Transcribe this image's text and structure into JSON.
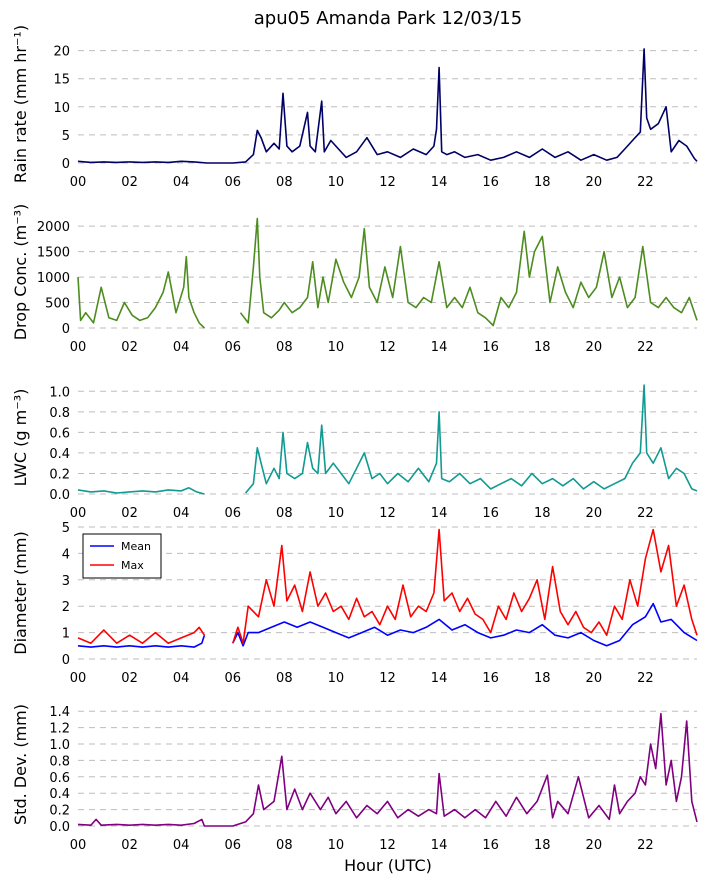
{
  "figure": {
    "title": "apu05 Amanda Park 12/03/15",
    "xlabel": "Hour (UTC)"
  },
  "chart_data": [
    {
      "type": "line",
      "id": "rain",
      "ylabel": "Rain rate (mm hr⁻¹)",
      "xlim": [
        0,
        24
      ],
      "ylim": [
        0,
        21
      ],
      "yticks": [
        0,
        5,
        10,
        15,
        20
      ],
      "ytick_labels": [
        "0",
        "5",
        "10",
        "15",
        "20"
      ],
      "xticks": [
        "00",
        "02",
        "04",
        "06",
        "08",
        "10",
        "12",
        "14",
        "16",
        "18",
        "20",
        "22"
      ],
      "grid": "y-dashed",
      "series": [
        {
          "color": "#000066",
          "x": [
            0,
            0.5,
            1,
            1.5,
            2,
            2.5,
            3,
            3.5,
            4,
            4.5,
            5,
            5.5,
            6,
            6.5,
            6.8,
            6.95,
            7.1,
            7.3,
            7.6,
            7.8,
            7.95,
            8.1,
            8.3,
            8.6,
            8.9,
            9.0,
            9.2,
            9.45,
            9.55,
            9.8,
            10.1,
            10.4,
            10.8,
            11.2,
            11.6,
            12.0,
            12.5,
            13.0,
            13.5,
            13.8,
            13.9,
            14.0,
            14.1,
            14.3,
            14.6,
            15.0,
            15.5,
            16.0,
            16.5,
            17.0,
            17.5,
            18.0,
            18.5,
            19.0,
            19.5,
            20.0,
            20.5,
            20.9,
            21.2,
            21.5,
            21.8,
            21.95,
            22.05,
            22.2,
            22.5,
            22.8,
            23.0,
            23.3,
            23.6,
            23.9,
            24.0
          ],
          "y": [
            0.3,
            0.1,
            0.2,
            0.1,
            0.2,
            0.1,
            0.2,
            0.1,
            0.3,
            0.2,
            0.0,
            0.0,
            0.0,
            0.2,
            1.5,
            5.8,
            4.5,
            2.0,
            3.5,
            2.5,
            12.4,
            3.0,
            2.0,
            3.0,
            9.0,
            3.0,
            2.0,
            11.0,
            2.0,
            4.0,
            2.5,
            1.0,
            2.0,
            4.5,
            1.5,
            2.0,
            1.0,
            2.5,
            1.5,
            3.0,
            6.0,
            17.0,
            2.0,
            1.5,
            2.0,
            1.0,
            1.5,
            0.5,
            1.0,
            2.0,
            1.0,
            2.5,
            1.0,
            2.0,
            0.5,
            1.5,
            0.5,
            1.0,
            2.5,
            4.0,
            5.5,
            20.3,
            8.0,
            6.0,
            7.0,
            10.0,
            2.0,
            4.0,
            3.0,
            0.8,
            0.3
          ]
        }
      ]
    },
    {
      "type": "line",
      "id": "conc",
      "ylabel": "Drop Conc. (m⁻³)",
      "xlim": [
        0,
        24
      ],
      "ylim": [
        0,
        2200
      ],
      "yticks": [
        0,
        500,
        1000,
        1500,
        2000
      ],
      "ytick_labels": [
        "0",
        "500",
        "1000",
        "1500",
        "2000"
      ],
      "xticks": [
        "00",
        "02",
        "04",
        "06",
        "08",
        "10",
        "12",
        "14",
        "16",
        "18",
        "20",
        "22"
      ],
      "grid": "y-dashed",
      "series": [
        {
          "color": "#4d8c1f",
          "x": [
            0,
            0.1,
            0.3,
            0.6,
            0.9,
            1.2,
            1.5,
            1.8,
            2.1,
            2.4,
            2.7,
            3.0,
            3.3,
            3.5,
            3.8,
            4.1,
            4.2,
            4.3,
            4.5,
            4.7,
            4.9,
            6.1,
            6.3,
            6.6,
            6.8,
            6.95,
            7.05,
            7.2,
            7.5,
            7.8,
            8.0,
            8.3,
            8.6,
            8.9,
            9.1,
            9.3,
            9.5,
            9.7,
            10.0,
            10.3,
            10.6,
            10.9,
            11.1,
            11.3,
            11.6,
            11.9,
            12.2,
            12.5,
            12.8,
            13.1,
            13.4,
            13.7,
            14.0,
            14.3,
            14.6,
            14.9,
            15.2,
            15.5,
            15.8,
            16.1,
            16.4,
            16.7,
            17.0,
            17.3,
            17.5,
            17.7,
            18.0,
            18.3,
            18.6,
            18.9,
            19.2,
            19.5,
            19.8,
            20.1,
            20.4,
            20.7,
            21.0,
            21.3,
            21.6,
            21.9,
            22.2,
            22.5,
            22.8,
            23.1,
            23.4,
            23.7,
            24.0
          ],
          "y": [
            1000,
            150,
            300,
            100,
            800,
            200,
            150,
            500,
            250,
            150,
            200,
            400,
            700,
            1100,
            300,
            800,
            1400,
            600,
            300,
            100,
            0,
            null,
            300,
            100,
            1200,
            2150,
            1000,
            300,
            200,
            350,
            500,
            300,
            400,
            600,
            1300,
            400,
            1000,
            500,
            1350,
            900,
            600,
            1000,
            1950,
            800,
            500,
            1200,
            600,
            1600,
            500,
            400,
            600,
            500,
            1300,
            400,
            600,
            400,
            800,
            300,
            200,
            50,
            600,
            400,
            700,
            1900,
            1000,
            1500,
            1800,
            500,
            1200,
            700,
            400,
            900,
            600,
            800,
            1500,
            600,
            1000,
            400,
            600,
            1600,
            500,
            400,
            600,
            400,
            300,
            600,
            150
          ]
        }
      ]
    },
    {
      "type": "line",
      "id": "lwc",
      "ylabel": "LWC (g m⁻³)",
      "xlim": [
        0,
        24
      ],
      "ylim": [
        0,
        1.1
      ],
      "yticks": [
        0.0,
        0.2,
        0.4,
        0.6,
        0.8,
        1.0
      ],
      "ytick_labels": [
        "0.0",
        "0.2",
        "0.4",
        "0.6",
        "0.8",
        "1.0"
      ],
      "xticks": [
        "00",
        "02",
        "04",
        "06",
        "08",
        "10",
        "12",
        "14",
        "16",
        "18",
        "20",
        "22"
      ],
      "grid": "y-dashed",
      "series": [
        {
          "color": "#119a91",
          "x": [
            0,
            0.5,
            1,
            1.5,
            2,
            2.5,
            3,
            3.5,
            4,
            4.3,
            4.6,
            4.9,
            6.1,
            6.5,
            6.8,
            6.95,
            7.1,
            7.3,
            7.6,
            7.8,
            7.95,
            8.1,
            8.4,
            8.7,
            8.9,
            9.1,
            9.3,
            9.45,
            9.6,
            9.9,
            10.2,
            10.5,
            10.8,
            11.1,
            11.4,
            11.7,
            12.0,
            12.4,
            12.8,
            13.2,
            13.6,
            13.9,
            14.0,
            14.1,
            14.4,
            14.8,
            15.2,
            15.6,
            16.0,
            16.4,
            16.8,
            17.2,
            17.6,
            18.0,
            18.4,
            18.8,
            19.2,
            19.6,
            20.0,
            20.4,
            20.8,
            21.2,
            21.5,
            21.8,
            21.95,
            22.05,
            22.3,
            22.6,
            22.9,
            23.2,
            23.5,
            23.8,
            24.0
          ],
          "y": [
            0.04,
            0.02,
            0.03,
            0.01,
            0.02,
            0.03,
            0.02,
            0.04,
            0.03,
            0.06,
            0.02,
            0.0,
            null,
            0.01,
            0.1,
            0.45,
            0.3,
            0.1,
            0.25,
            0.15,
            0.6,
            0.2,
            0.15,
            0.2,
            0.5,
            0.25,
            0.2,
            0.67,
            0.2,
            0.3,
            0.2,
            0.1,
            0.25,
            0.4,
            0.15,
            0.2,
            0.1,
            0.2,
            0.12,
            0.25,
            0.12,
            0.3,
            0.8,
            0.15,
            0.12,
            0.2,
            0.1,
            0.15,
            0.05,
            0.1,
            0.15,
            0.08,
            0.2,
            0.1,
            0.15,
            0.08,
            0.15,
            0.05,
            0.12,
            0.05,
            0.1,
            0.15,
            0.3,
            0.4,
            1.06,
            0.4,
            0.3,
            0.45,
            0.15,
            0.25,
            0.2,
            0.05,
            0.03
          ]
        }
      ]
    },
    {
      "type": "line",
      "id": "diam",
      "ylabel": "Diameter (mm)",
      "xlim": [
        0,
        24
      ],
      "ylim": [
        0,
        5
      ],
      "yticks": [
        0,
        1,
        2,
        3,
        4,
        5
      ],
      "ytick_labels": [
        "0",
        "1",
        "2",
        "3",
        "4",
        "5"
      ],
      "xticks": [
        "00",
        "02",
        "04",
        "06",
        "08",
        "10",
        "12",
        "14",
        "16",
        "18",
        "20",
        "22"
      ],
      "grid": "y-dashed",
      "legend": {
        "position": "upper-left",
        "entries": [
          "Mean",
          "Max"
        ]
      },
      "series": [
        {
          "name": "Mean",
          "color": "#0000ff",
          "x": [
            0,
            0.5,
            1,
            1.5,
            2,
            2.5,
            3,
            3.5,
            4,
            4.5,
            4.8,
            4.9,
            5.0,
            6.0,
            6.2,
            6.4,
            6.6,
            7.0,
            7.5,
            8.0,
            8.5,
            9.0,
            9.5,
            10.0,
            10.5,
            11.0,
            11.5,
            12.0,
            12.5,
            13.0,
            13.5,
            14.0,
            14.5,
            15.0,
            15.5,
            16.0,
            16.5,
            17.0,
            17.5,
            18.0,
            18.5,
            19.0,
            19.5,
            20.0,
            20.5,
            21.0,
            21.5,
            22.0,
            22.3,
            22.6,
            23.0,
            23.5,
            24.0
          ],
          "y": [
            0.5,
            0.45,
            0.5,
            0.45,
            0.5,
            0.45,
            0.5,
            0.45,
            0.5,
            0.45,
            0.6,
            0.9,
            null,
            0.6,
            1.0,
            0.5,
            1.0,
            1.0,
            1.2,
            1.4,
            1.2,
            1.4,
            1.2,
            1.0,
            0.8,
            1.0,
            1.2,
            0.9,
            1.1,
            1.0,
            1.2,
            1.5,
            1.1,
            1.3,
            1.0,
            0.8,
            0.9,
            1.1,
            1.0,
            1.3,
            0.9,
            0.8,
            1.0,
            0.7,
            0.5,
            0.7,
            1.3,
            1.6,
            2.1,
            1.4,
            1.5,
            1.0,
            0.7
          ]
        },
        {
          "name": "Max",
          "color": "#ff0000",
          "x": [
            0,
            0.5,
            1,
            1.5,
            2,
            2.5,
            3,
            3.5,
            4,
            4.5,
            4.7,
            4.9,
            5.0,
            6.0,
            6.2,
            6.4,
            6.6,
            7.0,
            7.3,
            7.6,
            7.9,
            8.1,
            8.4,
            8.7,
            9.0,
            9.3,
            9.6,
            9.9,
            10.2,
            10.5,
            10.8,
            11.1,
            11.4,
            11.7,
            12.0,
            12.3,
            12.6,
            12.9,
            13.2,
            13.5,
            13.8,
            14.0,
            14.2,
            14.5,
            14.8,
            15.1,
            15.4,
            15.7,
            16.0,
            16.3,
            16.6,
            16.9,
            17.2,
            17.5,
            17.8,
            18.1,
            18.4,
            18.7,
            19.0,
            19.3,
            19.6,
            19.9,
            20.2,
            20.5,
            20.8,
            21.1,
            21.4,
            21.7,
            22.0,
            22.3,
            22.6,
            22.9,
            23.2,
            23.5,
            23.8,
            24.0
          ],
          "y": [
            0.8,
            0.6,
            1.1,
            0.6,
            0.9,
            0.6,
            1.0,
            0.6,
            0.8,
            1.0,
            1.2,
            0.9,
            null,
            0.6,
            1.2,
            0.6,
            2.0,
            1.6,
            3.0,
            2.0,
            4.3,
            2.2,
            2.8,
            1.8,
            3.3,
            2.0,
            2.5,
            1.8,
            2.0,
            1.5,
            2.3,
            1.6,
            1.8,
            1.3,
            2.0,
            1.5,
            2.8,
            1.6,
            2.0,
            1.8,
            2.5,
            4.9,
            2.2,
            2.5,
            1.8,
            2.3,
            1.7,
            1.5,
            1.0,
            2.0,
            1.5,
            2.5,
            1.8,
            2.3,
            3.0,
            1.5,
            3.5,
            1.8,
            1.3,
            1.8,
            1.2,
            1.0,
            1.4,
            0.9,
            2.0,
            1.5,
            3.0,
            2.0,
            3.8,
            4.9,
            3.3,
            4.3,
            2.0,
            2.8,
            1.5,
            0.9
          ]
        }
      ]
    },
    {
      "type": "line",
      "id": "std",
      "ylabel": "Std. Dev. (mm)",
      "xlim": [
        0,
        24
      ],
      "ylim": [
        0,
        1.5
      ],
      "yticks": [
        0.0,
        0.2,
        0.4,
        0.6,
        0.8,
        1.0,
        1.2,
        1.4
      ],
      "ytick_labels": [
        "0.0",
        "0.2",
        "0.4",
        "0.6",
        "0.8",
        "1.0",
        "1.2",
        "1.4"
      ],
      "xticks": [
        "00",
        "02",
        "04",
        "06",
        "08",
        "10",
        "12",
        "14",
        "16",
        "18",
        "20",
        "22"
      ],
      "grid": "y-dashed",
      "series": [
        {
          "color": "#800080",
          "x": [
            0,
            0.5,
            0.7,
            0.9,
            1.5,
            2,
            2.5,
            3,
            3.5,
            4,
            4.5,
            4.8,
            4.9,
            6.0,
            6.3,
            6.5,
            6.8,
            7.0,
            7.2,
            7.6,
            7.9,
            8.1,
            8.4,
            8.7,
            9.0,
            9.4,
            9.7,
            10.0,
            10.4,
            10.8,
            11.2,
            11.6,
            12.0,
            12.4,
            12.8,
            13.2,
            13.6,
            13.9,
            14.0,
            14.2,
            14.6,
            15.0,
            15.4,
            15.8,
            16.2,
            16.6,
            17.0,
            17.4,
            17.8,
            18.2,
            18.4,
            18.6,
            19.0,
            19.4,
            19.8,
            20.2,
            20.6,
            20.8,
            21.0,
            21.3,
            21.6,
            21.8,
            22.0,
            22.2,
            22.4,
            22.6,
            22.8,
            23.0,
            23.2,
            23.4,
            23.6,
            23.8,
            24.0
          ],
          "y": [
            0.02,
            0.01,
            0.08,
            0.01,
            0.02,
            0.01,
            0.02,
            0.01,
            0.02,
            0.01,
            0.03,
            0.08,
            0.0,
            0.0,
            0.03,
            0.05,
            0.15,
            0.5,
            0.2,
            0.3,
            0.85,
            0.2,
            0.45,
            0.2,
            0.4,
            0.2,
            0.35,
            0.15,
            0.3,
            0.1,
            0.25,
            0.15,
            0.3,
            0.1,
            0.2,
            0.12,
            0.2,
            0.15,
            0.64,
            0.12,
            0.2,
            0.1,
            0.2,
            0.1,
            0.3,
            0.12,
            0.35,
            0.15,
            0.3,
            0.62,
            0.1,
            0.3,
            0.15,
            0.6,
            0.1,
            0.25,
            0.08,
            0.5,
            0.15,
            0.3,
            0.4,
            0.6,
            0.5,
            1.0,
            0.7,
            1.37,
            0.5,
            0.8,
            0.3,
            0.6,
            1.28,
            0.3,
            0.05
          ]
        }
      ]
    }
  ]
}
